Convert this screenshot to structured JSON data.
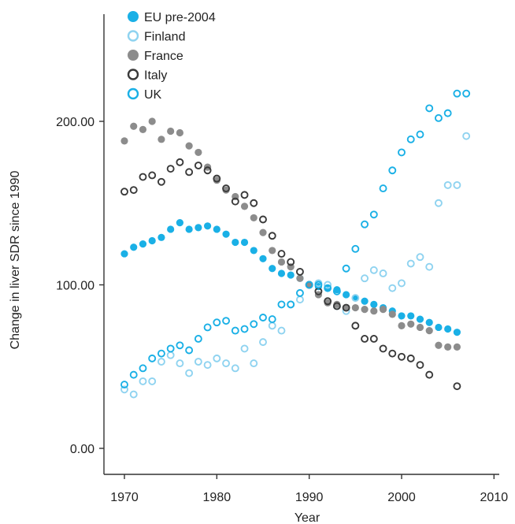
{
  "chart_data": {
    "type": "scatter",
    "title": "",
    "xlabel": "Year",
    "ylabel": "Change in liver SDR since 1990",
    "xlim": [
      1967,
      2010
    ],
    "ylim": [
      -15,
      270
    ],
    "xticks": [
      1970,
      1980,
      1990,
      2000,
      2010
    ],
    "xtick_labels": [
      "1970",
      "1980",
      "1990",
      "2000",
      "2010"
    ],
    "yticks": [
      0,
      100,
      200
    ],
    "ytick_labels": [
      "0.00",
      "100.00",
      "200.00"
    ],
    "grid": false,
    "legend_position": "top-left",
    "series": [
      {
        "name": "EU pre-2004",
        "marker": "filled",
        "color": "#1ab0e6",
        "x": [
          1970,
          1971,
          1972,
          1973,
          1974,
          1975,
          1976,
          1977,
          1978,
          1979,
          1980,
          1981,
          1982,
          1983,
          1984,
          1985,
          1986,
          1987,
          1988,
          1989,
          1990,
          1991,
          1992,
          1993,
          1994,
          1995,
          1996,
          1997,
          1998,
          1999,
          2000,
          2001,
          2002,
          2003,
          2004,
          2005,
          2006
        ],
        "y": [
          119,
          123,
          125,
          127,
          129,
          134,
          138,
          134,
          135,
          136,
          134,
          131,
          126,
          126,
          121,
          116,
          110,
          107,
          106,
          104,
          100,
          99,
          98,
          97,
          94,
          92,
          90,
          88,
          86,
          84,
          81,
          81,
          79,
          77,
          74,
          73,
          71
        ]
      },
      {
        "name": "Finland",
        "marker": "open",
        "color": "#8fd3f0",
        "x": [
          1970,
          1971,
          1972,
          1973,
          1974,
          1975,
          1976,
          1977,
          1978,
          1979,
          1980,
          1981,
          1982,
          1983,
          1984,
          1985,
          1986,
          1987,
          1988,
          1989,
          1990,
          1991,
          1992,
          1993,
          1994,
          1995,
          1996,
          1997,
          1998,
          1999,
          2000,
          2001,
          2002,
          2003,
          2004,
          2005,
          2006,
          2007
        ],
        "y": [
          36,
          33,
          41,
          41,
          53,
          57,
          52,
          46,
          53,
          51,
          55,
          52,
          49,
          61,
          52,
          65,
          75,
          72,
          88,
          91,
          100,
          101,
          100,
          87,
          84,
          92,
          104,
          109,
          107,
          98,
          101,
          113,
          117,
          111,
          150,
          161,
          161,
          191
        ]
      },
      {
        "name": "France",
        "marker": "filled",
        "color": "#8c8c8c",
        "x": [
          1970,
          1971,
          1972,
          1973,
          1974,
          1975,
          1976,
          1977,
          1978,
          1979,
          1980,
          1981,
          1982,
          1983,
          1984,
          1985,
          1986,
          1987,
          1988,
          1989,
          1990,
          1991,
          1992,
          1993,
          1994,
          1995,
          1996,
          1997,
          1998,
          1999,
          2000,
          2001,
          2002,
          2003,
          2004,
          2005,
          2006
        ],
        "y": [
          188,
          197,
          195,
          200,
          189,
          194,
          193,
          185,
          181,
          172,
          164,
          158,
          154,
          148,
          141,
          132,
          121,
          114,
          111,
          104,
          100,
          94,
          89,
          88,
          86,
          86,
          85,
          84,
          85,
          82,
          75,
          76,
          74,
          72,
          63,
          62,
          62
        ]
      },
      {
        "name": "Italy",
        "marker": "open",
        "color": "#3a3a3a",
        "x": [
          1970,
          1971,
          1972,
          1973,
          1974,
          1975,
          1976,
          1977,
          1978,
          1979,
          1980,
          1981,
          1982,
          1983,
          1984,
          1985,
          1986,
          1987,
          1988,
          1989,
          1990,
          1991,
          1992,
          1993,
          1994,
          1995,
          1996,
          1997,
          1998,
          1999,
          2000,
          2001,
          2002,
          2003,
          2006
        ],
        "y": [
          157,
          158,
          166,
          167,
          163,
          171,
          175,
          169,
          173,
          170,
          165,
          159,
          151,
          155,
          150,
          140,
          130,
          119,
          114,
          108,
          100,
          96,
          90,
          87,
          86,
          75,
          67,
          67,
          61,
          58,
          56,
          55,
          51,
          45,
          38
        ]
      },
      {
        "name": "UK",
        "marker": "open",
        "color": "#1ab0e6",
        "x": [
          1970,
          1971,
          1972,
          1973,
          1974,
          1975,
          1976,
          1977,
          1978,
          1979,
          1980,
          1981,
          1982,
          1983,
          1984,
          1985,
          1986,
          1987,
          1988,
          1989,
          1990,
          1991,
          1992,
          1993,
          1994,
          1995,
          1996,
          1997,
          1998,
          1999,
          2000,
          2001,
          2002,
          2003,
          2004,
          2005,
          2006,
          2007
        ],
        "y": [
          39,
          45,
          49,
          55,
          58,
          61,
          63,
          60,
          67,
          74,
          77,
          78,
          72,
          73,
          76,
          80,
          79,
          88,
          88,
          95,
          100,
          100,
          98,
          96,
          110,
          122,
          137,
          143,
          159,
          170,
          181,
          189,
          192,
          208,
          202,
          205,
          217,
          217
        ]
      }
    ]
  }
}
